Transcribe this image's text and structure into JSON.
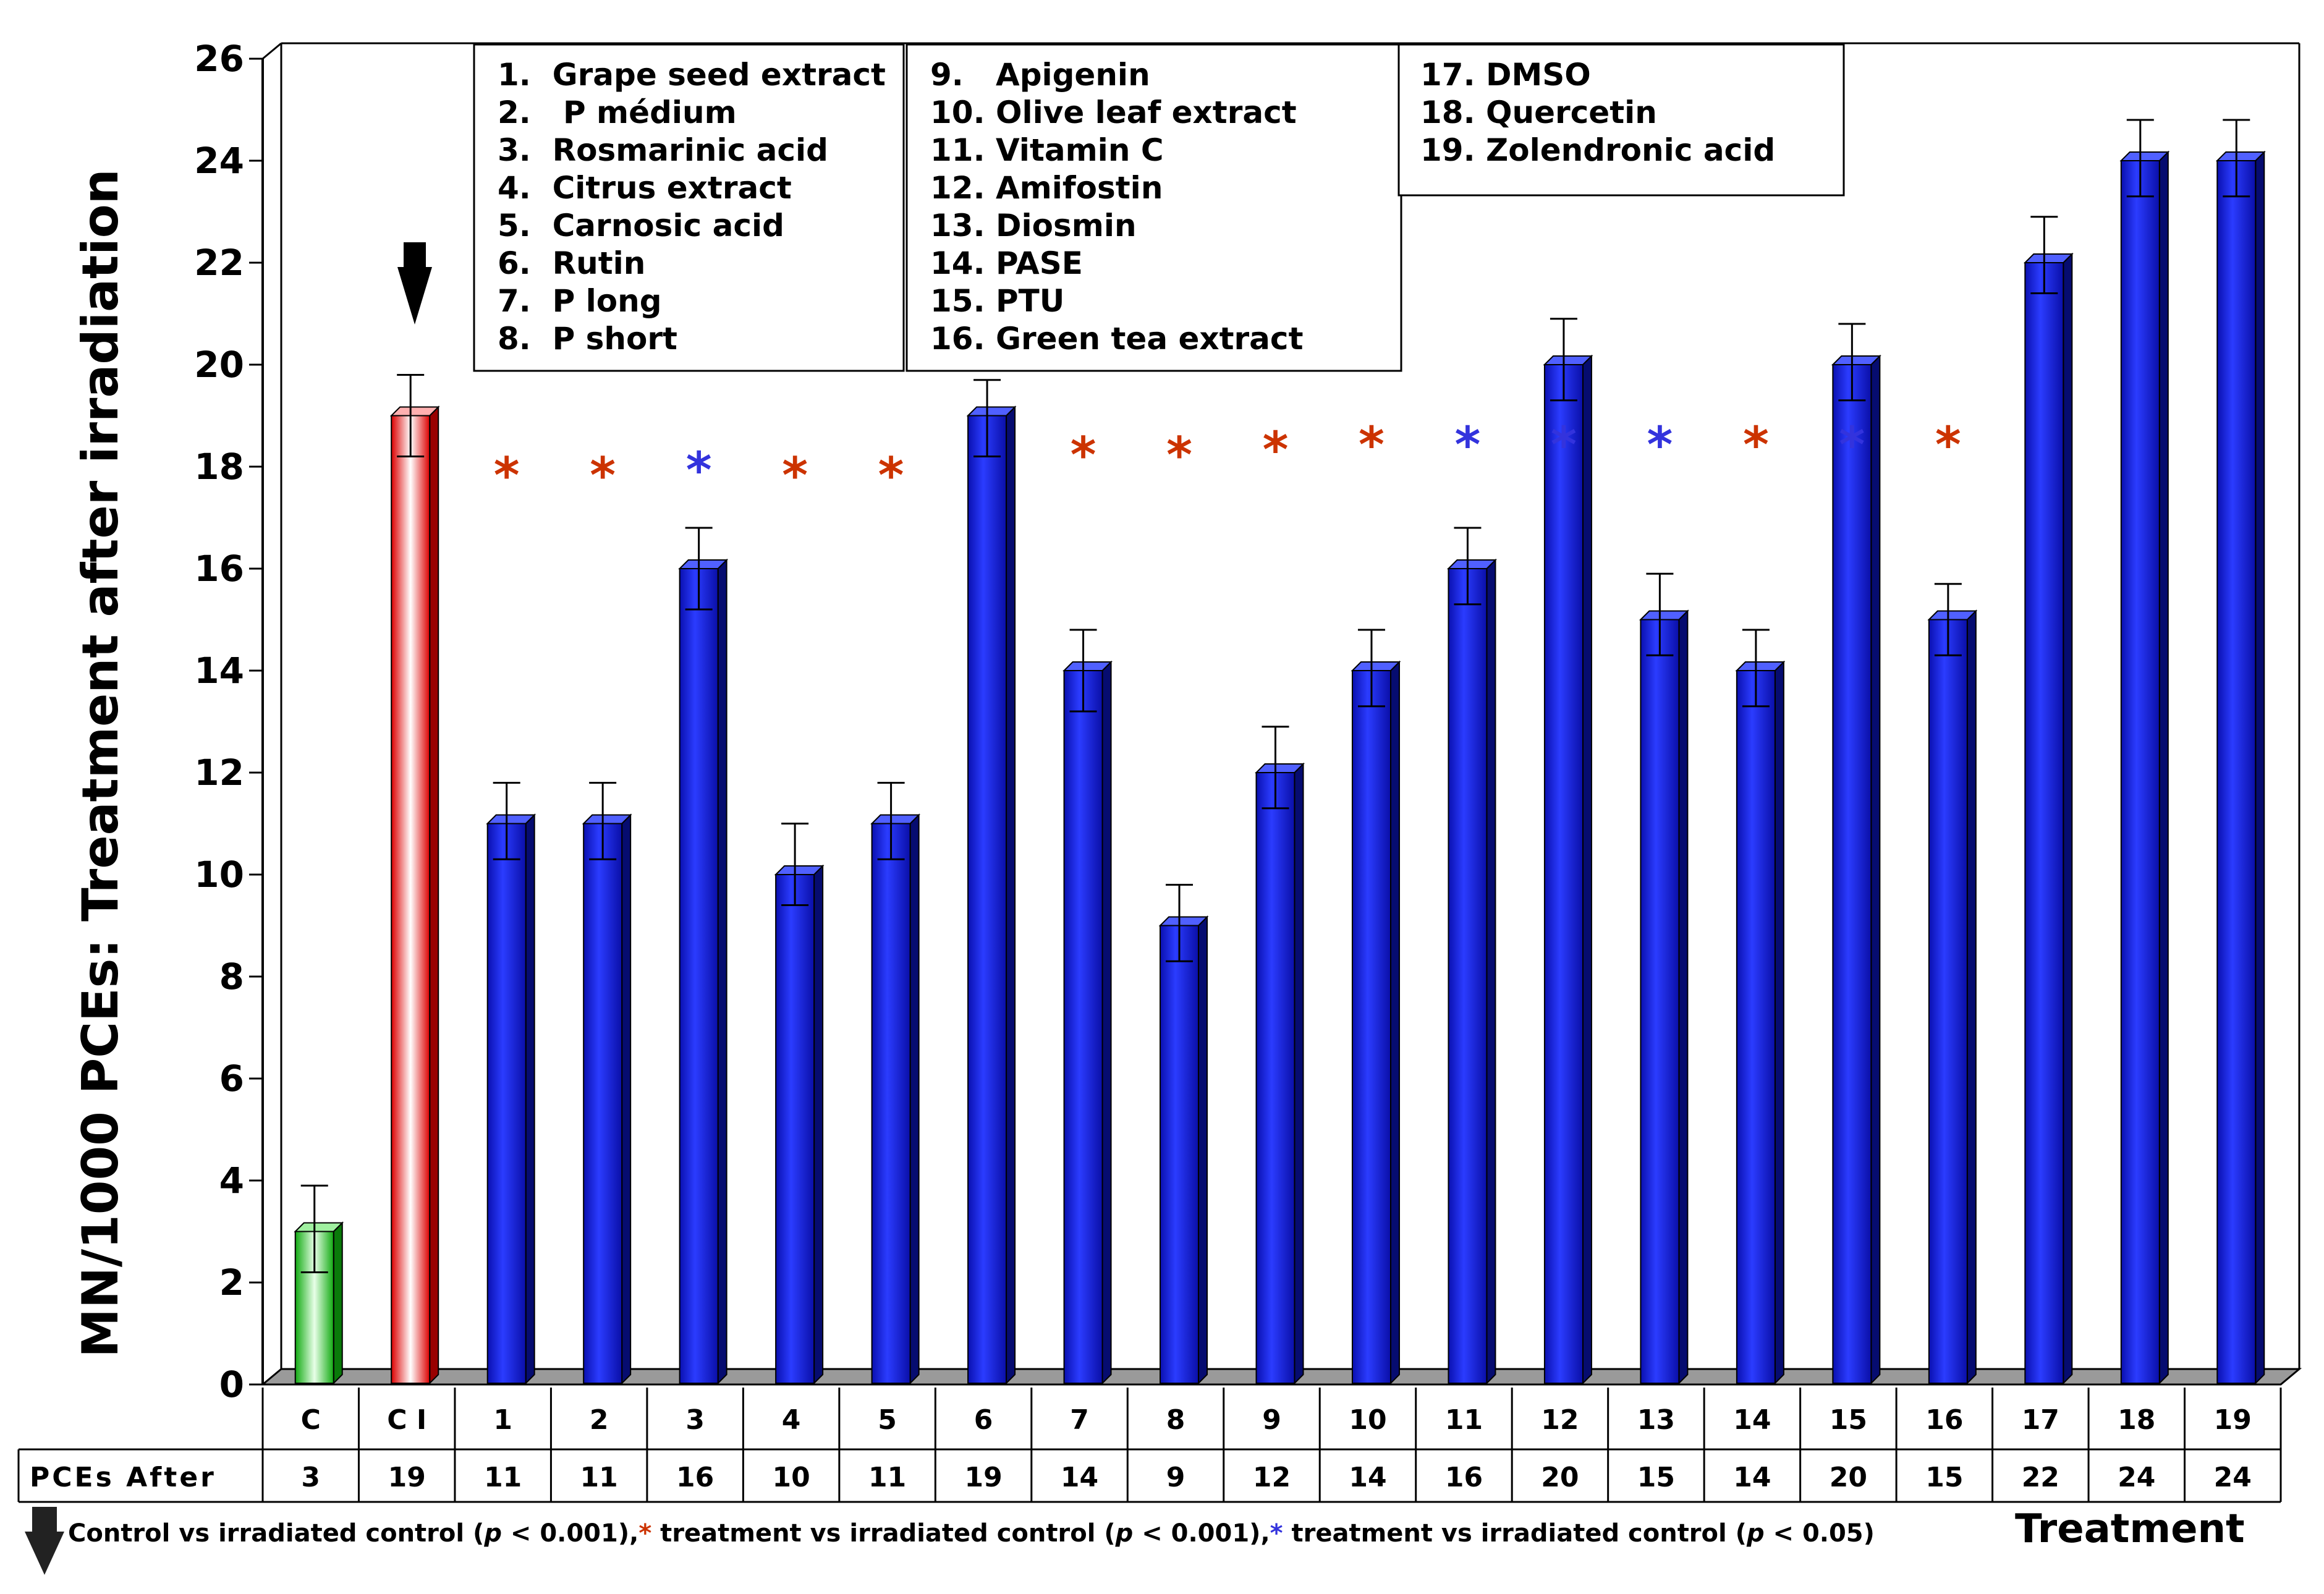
{
  "chart_data": {
    "type": "bar",
    "ylabel": "MN/1000 PCEs: Treatment after irradiation",
    "xlabel": "Treatment",
    "ylim": [
      0,
      26
    ],
    "yticks": [
      0,
      2,
      4,
      6,
      8,
      10,
      12,
      14,
      16,
      18,
      20,
      22,
      24,
      26
    ],
    "categories": [
      "C",
      "C I",
      "1",
      "2",
      "3",
      "4",
      "5",
      "6",
      "7",
      "8",
      "9",
      "10",
      "11",
      "12",
      "13",
      "14",
      "15",
      "16",
      "17",
      "18",
      "19"
    ],
    "values": [
      3,
      19,
      11,
      11,
      16,
      10,
      11,
      19,
      14,
      9,
      12,
      14,
      16,
      20,
      15,
      14,
      20,
      15,
      22,
      24,
      24
    ],
    "error_upper": [
      0.9,
      0.8,
      0.8,
      0.8,
      0.8,
      1.0,
      0.8,
      0.7,
      0.8,
      0.8,
      0.9,
      0.8,
      0.8,
      0.9,
      0.9,
      0.8,
      0.8,
      0.7,
      0.9,
      0.8,
      0.8
    ],
    "error_lower": [
      0.8,
      0.8,
      0.7,
      0.7,
      0.8,
      0.6,
      0.7,
      0.8,
      0.8,
      0.7,
      0.7,
      0.7,
      0.7,
      0.7,
      0.7,
      0.7,
      0.7,
      0.7,
      0.6,
      0.7,
      0.7
    ],
    "bar_colors": [
      "green",
      "red",
      "blue",
      "blue",
      "blue",
      "blue",
      "blue",
      "blue",
      "blue",
      "blue",
      "blue",
      "blue",
      "blue",
      "blue",
      "blue",
      "blue",
      "blue",
      "blue",
      "blue",
      "blue",
      "blue"
    ],
    "significance": [
      {
        "category": "1",
        "level": "p<0.001",
        "y": 18.1
      },
      {
        "category": "2",
        "level": "p<0.001",
        "y": 18.1
      },
      {
        "category": "3",
        "level": "p<0.05",
        "y": 18.2
      },
      {
        "category": "4",
        "level": "p<0.001",
        "y": 18.1
      },
      {
        "category": "5",
        "level": "p<0.001",
        "y": 18.1
      },
      {
        "category": "7",
        "level": "p<0.001",
        "y": 18.5
      },
      {
        "category": "8",
        "level": "p<0.001",
        "y": 18.5
      },
      {
        "category": "9",
        "level": "p<0.001",
        "y": 18.6
      },
      {
        "category": "10",
        "level": "p<0.001",
        "y": 18.7
      },
      {
        "category": "11",
        "level": "p<0.05",
        "y": 18.7
      },
      {
        "category": "12",
        "level": "p<0.05",
        "y": 18.7
      },
      {
        "category": "13",
        "level": "p<0.05",
        "y": 18.7
      },
      {
        "category": "14",
        "level": "p<0.001",
        "y": 18.7
      },
      {
        "category": "15",
        "level": "p<0.05",
        "y": 18.7
      },
      {
        "category": "16",
        "level": "p<0.001",
        "y": 18.7
      }
    ],
    "legend_boxes": [
      [
        "1.  Grape seed extract",
        "2.   P médium",
        "3.  Rosmarinic acid",
        "4.  Citrus extract",
        "5.  Carnosic acid",
        "6.  Rutin",
        "7.  P long",
        "8.  P short"
      ],
      [
        "9.   Apigenin",
        "10. Olive leaf extract",
        "11. Vitamin C",
        "12. Amifostin",
        "13. Diosmin",
        "14. PASE",
        "15. PTU",
        "16. Green tea extract"
      ],
      [
        "17. DMSO",
        "18. Quercetin",
        "19. Zolendronic acid"
      ]
    ],
    "table_row_label": "PCEs After",
    "table_values": [
      "3",
      "19",
      "11",
      "11",
      "16",
      "10",
      "11",
      "19",
      "14",
      "9",
      "12",
      "14",
      "16",
      "20",
      "15",
      "14",
      "20",
      "15",
      "22",
      "24",
      "24"
    ],
    "footnote": {
      "part1": "Control vs irradiated control (",
      "p": "p",
      "lt001": " < 0.001),",
      "part2": " treatment vs irradiated control (",
      "part3": " treatment vs irradiated control (",
      "lt005": " < 0.05)",
      "star": "*"
    },
    "colors": {
      "red_star": "#cc3300",
      "blue_star": "#3333dd",
      "blue_bar": "#0a14e6",
      "red_bar": "#ee1111",
      "green_bar": "#22bb22"
    }
  }
}
